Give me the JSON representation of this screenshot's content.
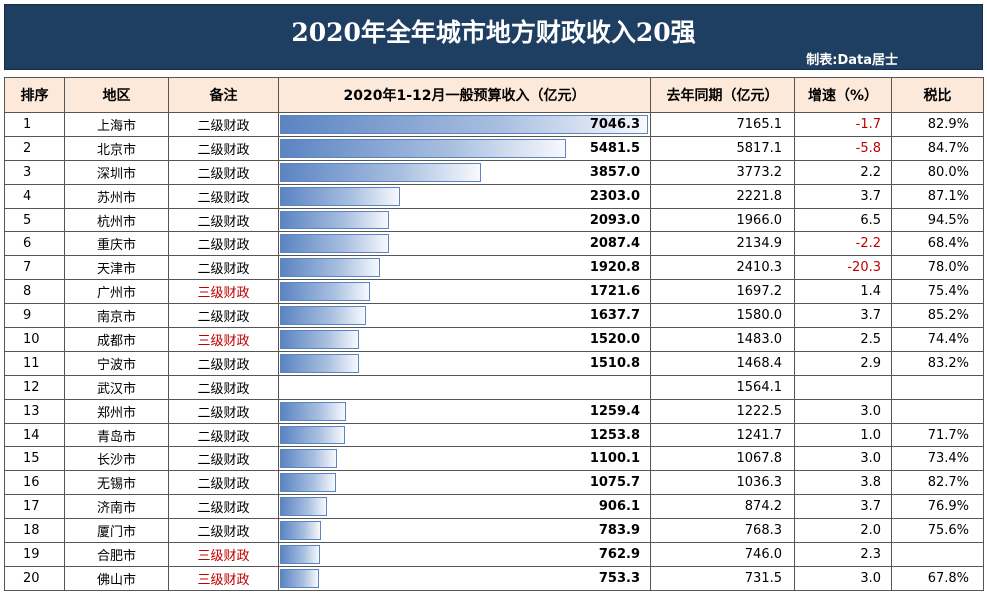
{
  "title": "2020年全年城市地方财政收入20强",
  "credit": "制表:Data居士",
  "headers": [
    "排序",
    "地区",
    "备注",
    "2020年1-12月一般预算收入（亿元）",
    "去年同期（亿元）",
    "增速（%）",
    "税比"
  ],
  "colors": {
    "banner": "#1f3f62",
    "header_bg": "#fde9d9",
    "negative": "#c00000",
    "bar": "#5b84c2"
  },
  "bar_max": 7046.3,
  "rows": [
    {
      "rank": "1",
      "city": "上海市",
      "note": "二级财政",
      "note_red": false,
      "revenue": 7046.3,
      "revenue_text": "7046.3",
      "prev": "7165.1",
      "growth": "-1.7",
      "neg": true,
      "tax": "82.9%"
    },
    {
      "rank": "2",
      "city": "北京市",
      "note": "二级财政",
      "note_red": false,
      "revenue": 5481.5,
      "revenue_text": "5481.5",
      "prev": "5817.1",
      "growth": "-5.8",
      "neg": true,
      "tax": "84.7%"
    },
    {
      "rank": "3",
      "city": "深圳市",
      "note": "二级财政",
      "note_red": false,
      "revenue": 3857.0,
      "revenue_text": "3857.0",
      "prev": "3773.2",
      "growth": "2.2",
      "neg": false,
      "tax": "80.0%"
    },
    {
      "rank": "4",
      "city": "苏州市",
      "note": "二级财政",
      "note_red": false,
      "revenue": 2303.0,
      "revenue_text": "2303.0",
      "prev": "2221.8",
      "growth": "3.7",
      "neg": false,
      "tax": "87.1%"
    },
    {
      "rank": "5",
      "city": "杭州市",
      "note": "二级财政",
      "note_red": false,
      "revenue": 2093.0,
      "revenue_text": "2093.0",
      "prev": "1966.0",
      "growth": "6.5",
      "neg": false,
      "tax": "94.5%"
    },
    {
      "rank": "6",
      "city": "重庆市",
      "note": "二级财政",
      "note_red": false,
      "revenue": 2087.4,
      "revenue_text": "2087.4",
      "prev": "2134.9",
      "growth": "-2.2",
      "neg": true,
      "tax": "68.4%"
    },
    {
      "rank": "7",
      "city": "天津市",
      "note": "二级财政",
      "note_red": false,
      "revenue": 1920.8,
      "revenue_text": "1920.8",
      "prev": "2410.3",
      "growth": "-20.3",
      "neg": true,
      "tax": "78.0%"
    },
    {
      "rank": "8",
      "city": "广州市",
      "note": "三级财政",
      "note_red": true,
      "revenue": 1721.6,
      "revenue_text": "1721.6",
      "prev": "1697.2",
      "growth": "1.4",
      "neg": false,
      "tax": "75.4%"
    },
    {
      "rank": "9",
      "city": "南京市",
      "note": "二级财政",
      "note_red": false,
      "revenue": 1637.7,
      "revenue_text": "1637.7",
      "prev": "1580.0",
      "growth": "3.7",
      "neg": false,
      "tax": "85.2%"
    },
    {
      "rank": "10",
      "city": "成都市",
      "note": "三级财政",
      "note_red": true,
      "revenue": 1520.0,
      "revenue_text": "1520.0",
      "prev": "1483.0",
      "growth": "2.5",
      "neg": false,
      "tax": "74.4%"
    },
    {
      "rank": "11",
      "city": "宁波市",
      "note": "二级财政",
      "note_red": false,
      "revenue": 1510.8,
      "revenue_text": "1510.8",
      "prev": "1468.4",
      "growth": "2.9",
      "neg": false,
      "tax": "83.2%"
    },
    {
      "rank": "12",
      "city": "武汉市",
      "note": "二级财政",
      "note_red": false,
      "revenue": null,
      "revenue_text": "",
      "prev": "1564.1",
      "growth": "",
      "neg": false,
      "tax": ""
    },
    {
      "rank": "13",
      "city": "郑州市",
      "note": "二级财政",
      "note_red": false,
      "revenue": 1259.4,
      "revenue_text": "1259.4",
      "prev": "1222.5",
      "growth": "3.0",
      "neg": false,
      "tax": ""
    },
    {
      "rank": "14",
      "city": "青岛市",
      "note": "二级财政",
      "note_red": false,
      "revenue": 1253.8,
      "revenue_text": "1253.8",
      "prev": "1241.7",
      "growth": "1.0",
      "neg": false,
      "tax": "71.7%"
    },
    {
      "rank": "15",
      "city": "长沙市",
      "note": "二级财政",
      "note_red": false,
      "revenue": 1100.1,
      "revenue_text": "1100.1",
      "prev": "1067.8",
      "growth": "3.0",
      "neg": false,
      "tax": "73.4%"
    },
    {
      "rank": "16",
      "city": "无锡市",
      "note": "二级财政",
      "note_red": false,
      "revenue": 1075.7,
      "revenue_text": "1075.7",
      "prev": "1036.3",
      "growth": "3.8",
      "neg": false,
      "tax": "82.7%"
    },
    {
      "rank": "17",
      "city": "济南市",
      "note": "二级财政",
      "note_red": false,
      "revenue": 906.1,
      "revenue_text": "906.1",
      "prev": "874.2",
      "growth": "3.7",
      "neg": false,
      "tax": "76.9%"
    },
    {
      "rank": "18",
      "city": "厦门市",
      "note": "二级财政",
      "note_red": false,
      "revenue": 783.9,
      "revenue_text": "783.9",
      "prev": "768.3",
      "growth": "2.0",
      "neg": false,
      "tax": "75.6%"
    },
    {
      "rank": "19",
      "city": "合肥市",
      "note": "三级财政",
      "note_red": true,
      "revenue": 762.9,
      "revenue_text": "762.9",
      "prev": "746.0",
      "growth": "2.3",
      "neg": false,
      "tax": ""
    },
    {
      "rank": "20",
      "city": "佛山市",
      "note": "三级财政",
      "note_red": true,
      "revenue": 753.3,
      "revenue_text": "753.3",
      "prev": "731.5",
      "growth": "3.0",
      "neg": false,
      "tax": "67.8%"
    }
  ]
}
